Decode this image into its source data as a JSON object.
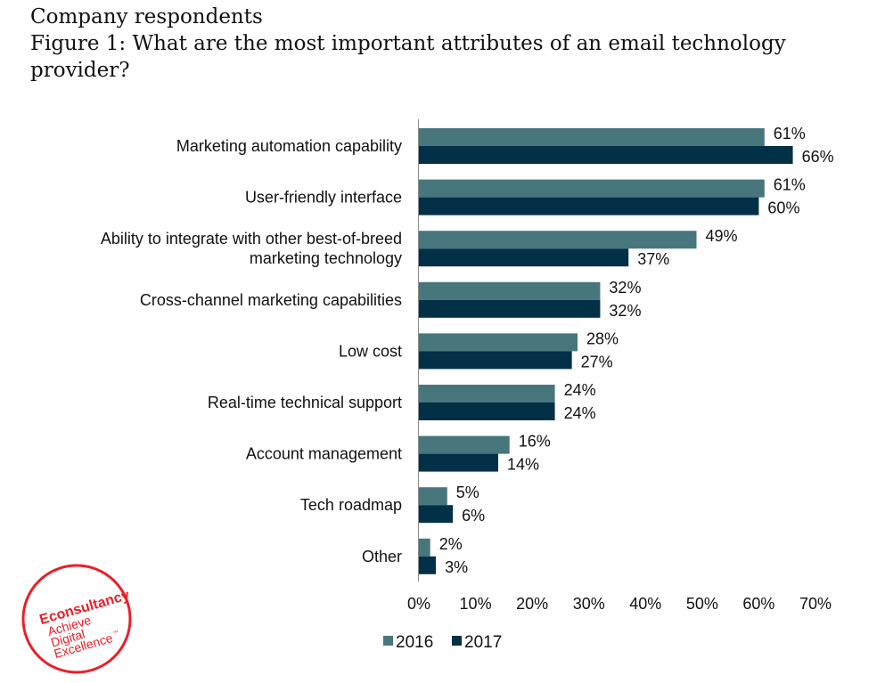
{
  "header": {
    "subtitle": "Company respondents",
    "title_line1": "Figure 1: What are the most important attributes of an email technology",
    "title_line2": "provider?"
  },
  "logo": {
    "brand": "Econsultancy",
    "tagline": [
      "Achieve",
      "Digital",
      "Excellence"
    ],
    "trademark": "™",
    "color": "#e8202a"
  },
  "chart_data": {
    "type": "bar",
    "orientation": "horizontal",
    "title": "Figure 1: What are the most important attributes of an email technology provider?",
    "subtitle": "Company respondents",
    "xlabel": "",
    "ylabel": "",
    "xlim": [
      0,
      70
    ],
    "x_ticks": [
      0,
      10,
      20,
      30,
      40,
      50,
      60,
      70
    ],
    "x_tick_labels": [
      "0%",
      "10%",
      "20%",
      "30%",
      "40%",
      "50%",
      "60%",
      "70%"
    ],
    "grid": false,
    "legend_position": "bottom",
    "categories": [
      [
        "Marketing automation capability"
      ],
      [
        "User-friendly interface"
      ],
      [
        "Ability to integrate with other best-of-breed",
        "marketing technology"
      ],
      [
        "Cross-channel marketing capabilities"
      ],
      [
        "Low cost"
      ],
      [
        "Real-time technical support"
      ],
      [
        "Account management"
      ],
      [
        "Tech roadmap"
      ],
      [
        "Other"
      ]
    ],
    "series": [
      {
        "name": "2016",
        "color": "#47767c",
        "values": [
          61,
          61,
          49,
          32,
          28,
          24,
          16,
          5,
          2
        ]
      },
      {
        "name": "2017",
        "color": "#023047",
        "values": [
          66,
          60,
          37,
          32,
          27,
          24,
          14,
          6,
          3
        ]
      }
    ],
    "value_suffix": "%"
  }
}
